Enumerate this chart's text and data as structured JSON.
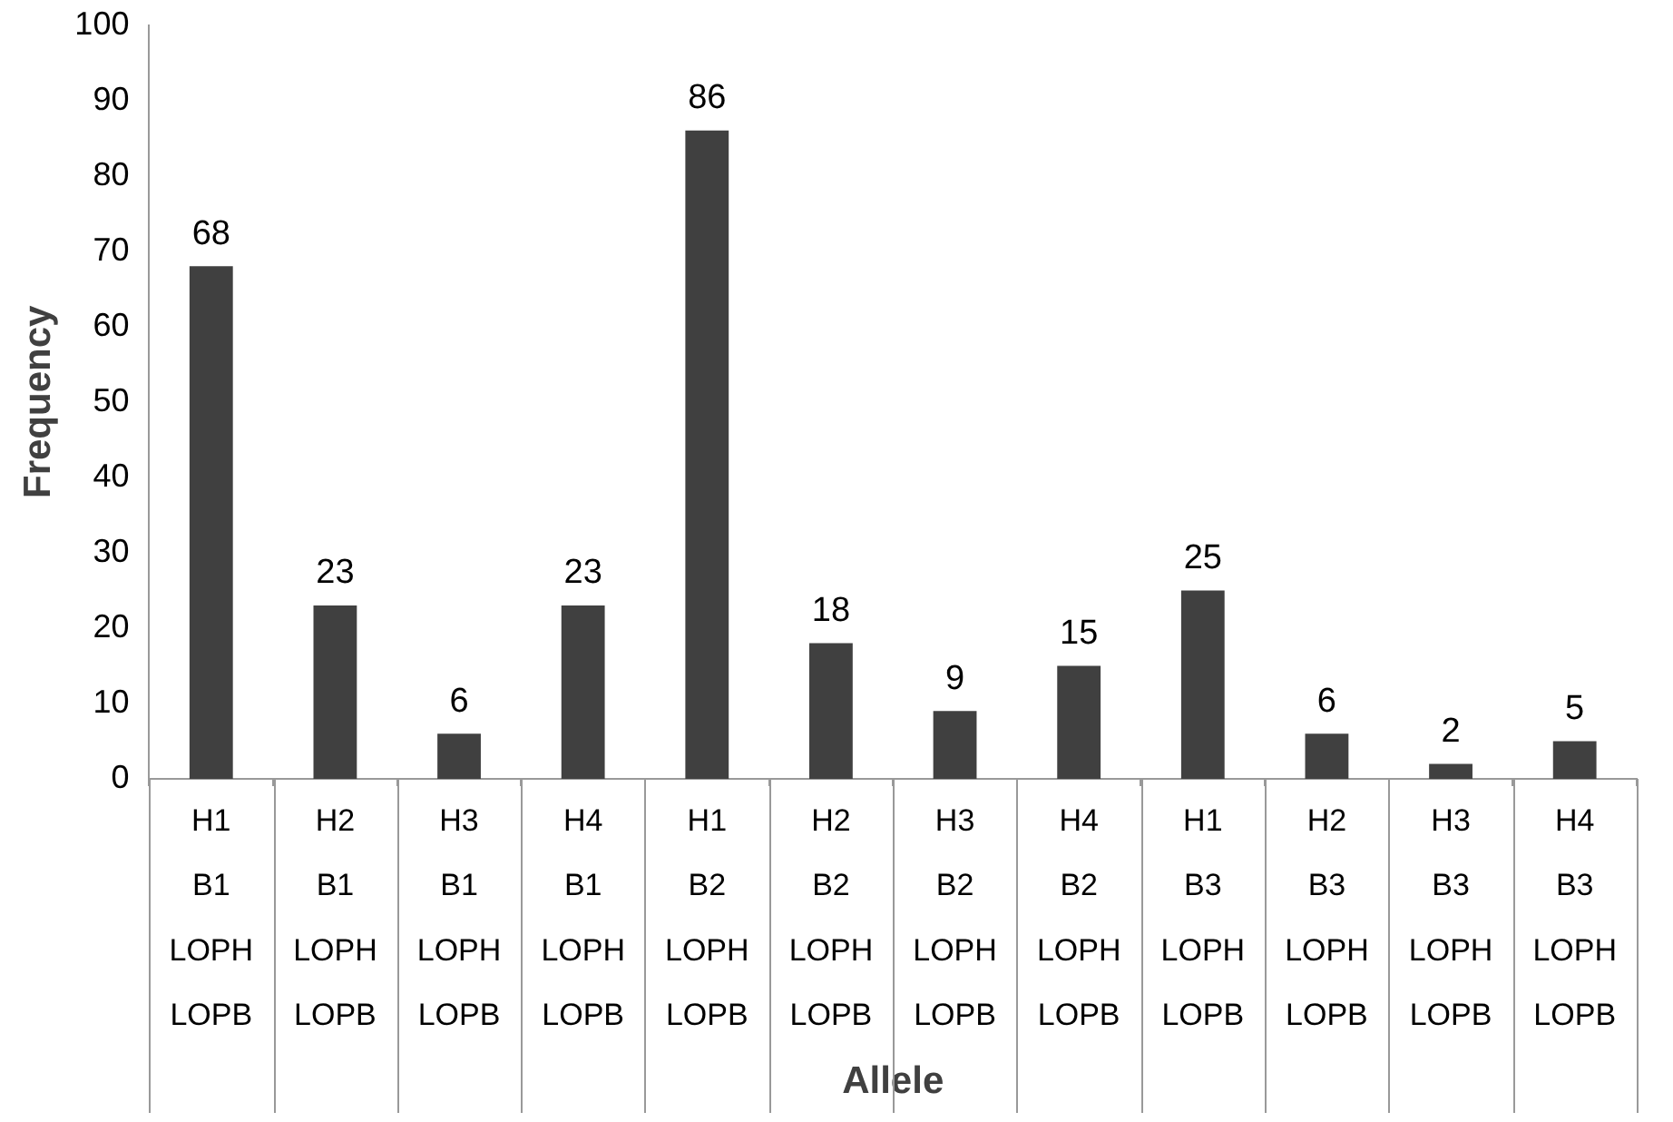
{
  "chart_data": {
    "type": "bar",
    "xlabel": "Allele",
    "ylabel": "Frequency",
    "categories": [
      "H1\nB1\nLOPH\nLOPB",
      "H2\nB1\nLOPH\nLOPB",
      "H3\nB1\nLOPH\nLOPB",
      "H4\nB1\nLOPH\nLOPB",
      "H1\nB2\nLOPH\nLOPB",
      "H2\nB2\nLOPH\nLOPB",
      "H3\nB2\nLOPH\nLOPB",
      "H4\nB2\nLOPH\nLOPB",
      "H1\nB3\nLOPH\nLOPB",
      "H2\nB3\nLOPH\nLOPB",
      "H3\nB3\nLOPH\nLOPB",
      "H4\nB3\nLOPH\nLOPB"
    ],
    "values": [
      68,
      23,
      6,
      23,
      86,
      18,
      9,
      15,
      25,
      6,
      2,
      5
    ],
    "color": "#404040",
    "ylim": [
      0,
      100
    ],
    "yticks": [
      0,
      10,
      20,
      30,
      40,
      50,
      60,
      70,
      80,
      90,
      100
    ],
    "grid": false,
    "legend": false,
    "data_labels": true
  }
}
